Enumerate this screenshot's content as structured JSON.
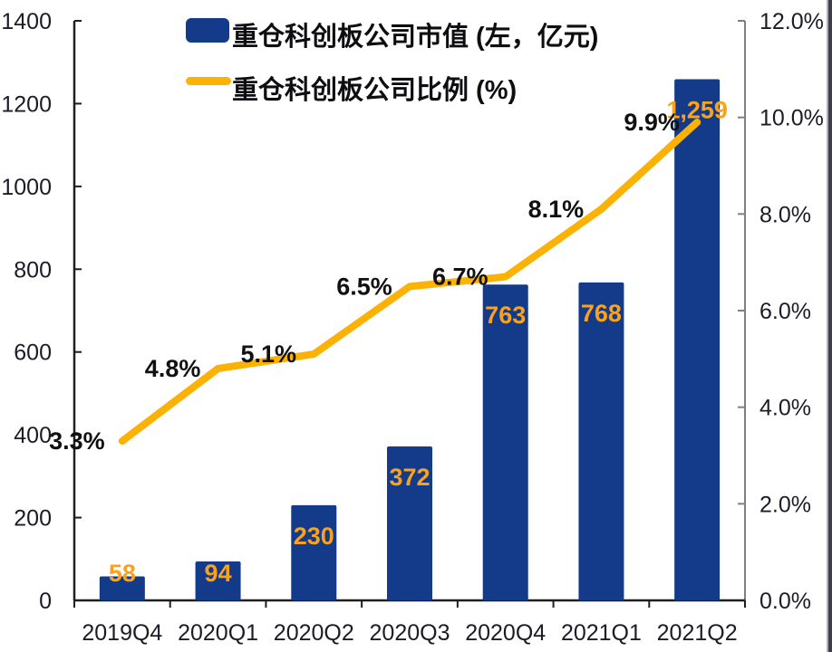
{
  "legend": {
    "items": [
      {
        "label": "重仓科创板公司市值 (左，亿元)",
        "swatch": "bar"
      },
      {
        "label": "重仓科创板公司比例 (%)",
        "swatch": "line"
      }
    ]
  },
  "colors": {
    "bar": "#133B8A",
    "line": "#FCB105",
    "bar_label": "#FAA21C",
    "pct_label": "#111111",
    "axis_text": "#1c1c26",
    "axis_line": "#1f1f1f",
    "right_axis_line": "#808080",
    "legend_text": "#0d0d12"
  },
  "chart_data": {
    "type": "combo",
    "categories": [
      "2019Q4",
      "2020Q1",
      "2020Q2",
      "2020Q3",
      "2020Q4",
      "2021Q1",
      "2021Q2"
    ],
    "series": [
      {
        "name": "重仓科创板公司市值 (左，亿元)",
        "type": "bar",
        "axis": "left",
        "values": [
          58,
          94,
          230,
          372,
          763,
          768,
          1259
        ],
        "data_labels": [
          "58",
          "94",
          "230",
          "372",
          "763",
          "768",
          "1,259"
        ]
      },
      {
        "name": "重仓科创板公司比例 (%)",
        "type": "line",
        "axis": "right",
        "values": [
          3.3,
          4.8,
          5.1,
          6.5,
          6.7,
          8.1,
          9.9
        ],
        "data_labels": [
          "3.3%",
          "4.8%",
          "5.1%",
          "6.5%",
          "6.7%",
          "8.1%",
          "9.9%"
        ]
      }
    ],
    "left_axis": {
      "min": 0,
      "max": 1400,
      "step": 200,
      "tick_labels": [
        "0",
        "200",
        "400",
        "600",
        "800",
        "1000",
        "1200",
        "1400"
      ]
    },
    "right_axis": {
      "min": 0,
      "max": 12,
      "step": 2,
      "tick_labels": [
        "0.0%",
        "2.0%",
        "4.0%",
        "6.0%",
        "8.0%",
        "10.0%",
        "12.0%"
      ]
    },
    "legend_position": "top-left",
    "grid": false
  }
}
